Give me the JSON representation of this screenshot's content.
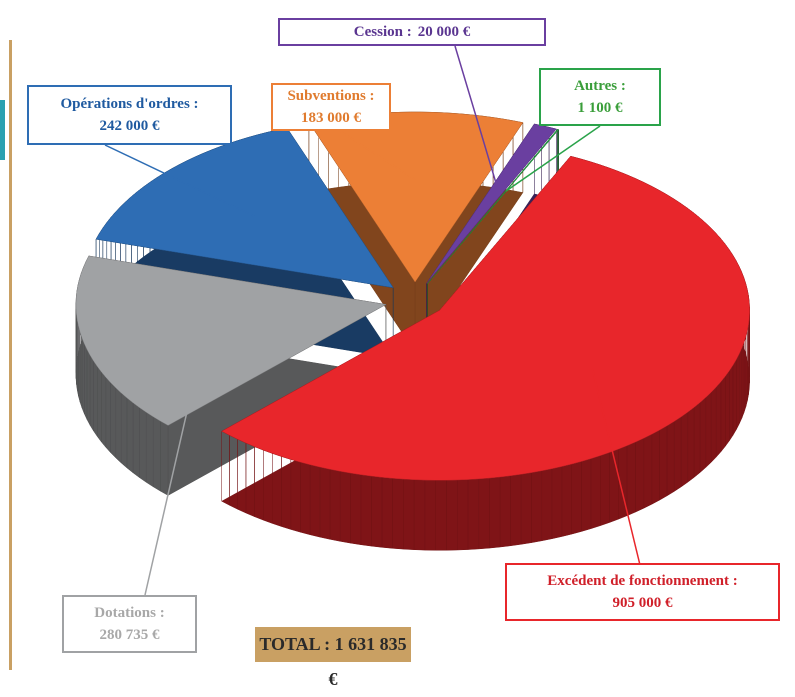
{
  "chart_data": {
    "type": "pie3d",
    "series": [
      {
        "name": "Excédent de fonctionnement :",
        "value": 905000,
        "value_label": "905 000 €",
        "color": "#e8262b",
        "text_color": "#d0202a"
      },
      {
        "name": "Dotations :",
        "value": 280735,
        "value_label": "280 735 €",
        "color": "#a0a2a4",
        "text_color": "#a8a8a8"
      },
      {
        "name": "Opérations d'ordres :",
        "value": 242000,
        "value_label": "242 000 €",
        "color": "#2e6db4",
        "text_color": "#1f5aa0"
      },
      {
        "name": "Subventions :",
        "value": 183000,
        "value_label": "183 000 €",
        "color": "#ec7f36",
        "text_color": "#e07b2e"
      },
      {
        "name": "Cession :",
        "value": 20000,
        "value_label": "20 000 €",
        "color": "#6a3fa0",
        "text_color": "#5a3590"
      },
      {
        "name": "Autres :",
        "value": 1100,
        "value_label": "1 100 €",
        "color": "#2aa34a",
        "text_color": "#3a9e3a"
      }
    ],
    "total_label": "TOTAL : 1 631 835 €"
  }
}
